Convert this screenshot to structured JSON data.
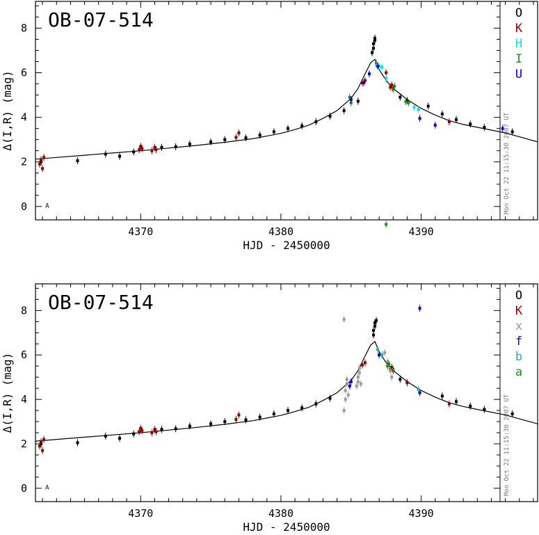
{
  "chart_data": [
    {
      "type": "scatter",
      "title": "OB-07-514",
      "xlabel": "HJD - 2450000",
      "ylabel": "Δ(I,R) (mag)",
      "xlim": [
        4362.5,
        4398.3
      ],
      "ylim": [
        -0.6,
        9.2
      ],
      "x_ticks": [
        "4370",
        "4380",
        "4390"
      ],
      "y_ticks": [
        "0",
        "2",
        "4",
        "6",
        "8"
      ],
      "grid": false,
      "legend_position": "right-column",
      "timestamp": "Mon Oct 22 11:15:30 2007 UT",
      "corner_mark": "A",
      "model_curve": {
        "x": [
          4362.5,
          4364,
          4366,
          4368,
          4370,
          4372,
          4374,
          4376,
          4378,
          4380,
          4381,
          4382,
          4383,
          4384,
          4385,
          4385.5,
          4386,
          4386.4,
          4386.7,
          4387,
          4387.5,
          4388,
          4389,
          4390,
          4391,
          4392,
          4393,
          4394,
          4396,
          4398.3
        ],
        "y": [
          2.12,
          2.2,
          2.3,
          2.4,
          2.5,
          2.62,
          2.74,
          2.88,
          3.04,
          3.28,
          3.45,
          3.65,
          3.95,
          4.3,
          4.85,
          5.3,
          5.95,
          6.45,
          6.6,
          6.15,
          5.65,
          5.3,
          4.8,
          4.4,
          4.1,
          3.85,
          3.68,
          3.55,
          3.3,
          2.9
        ]
      },
      "series": [
        {
          "name": "O",
          "color": "#000000",
          "x": [
            4362.9,
            4365.5,
            4367.5,
            4368.5,
            4369.5,
            4371.5,
            4372.5,
            4373.5,
            4375.0,
            4376.0,
            4377.5,
            4378.5,
            4379.5,
            4380.5,
            4381.5,
            4382.5,
            4383.5,
            4384.5,
            4385.5,
            4386.5,
            4386.6,
            4386.6,
            4386.7,
            4386.7,
            4386.8,
            4388.5,
            4389.0,
            4390.5,
            4391.5,
            4392.5,
            4393.5,
            4394.5,
            4396.5
          ],
          "y": [
            2.0,
            2.05,
            2.35,
            2.25,
            2.45,
            2.65,
            2.68,
            2.8,
            2.9,
            3.0,
            3.08,
            3.2,
            3.35,
            3.5,
            3.62,
            3.8,
            4.05,
            4.3,
            4.72,
            6.9,
            7.1,
            7.3,
            7.45,
            7.55,
            6.4,
            4.9,
            4.75,
            4.5,
            4.15,
            3.9,
            3.7,
            3.55,
            3.35
          ]
        },
        {
          "name": "K",
          "color": "#8b0000",
          "x": [
            4362.8,
            4362.9,
            4363.0,
            4363.1,
            4369.9,
            4370.0,
            4370.1,
            4370.8,
            4371.0,
            4371.1,
            4376.8,
            4377.0,
            4385.8,
            4386.0,
            4387.5,
            4387.8,
            4387.9,
            4388.0,
            4392.0
          ],
          "y": [
            1.9,
            2.1,
            1.7,
            2.2,
            2.55,
            2.7,
            2.6,
            2.5,
            2.65,
            2.55,
            3.1,
            3.3,
            5.55,
            5.65,
            6.0,
            5.35,
            5.45,
            5.3,
            3.8
          ]
        },
        {
          "name": "H",
          "color": "#00e5ee",
          "x": [
            4386.8,
            4387.0,
            4387.2,
            4387.5,
            4389.5,
            4389.8
          ],
          "y": [
            6.35,
            6.3,
            6.25,
            5.75,
            4.45,
            4.35
          ]
        },
        {
          "name": "I",
          "color": "#228b22",
          "x": [
            4384.9,
            4385.0,
            4388.0,
            4388.1,
            4388.9,
            4389.1,
            4387.5
          ],
          "y": [
            4.9,
            4.65,
            5.25,
            5.4,
            4.7,
            4.65,
            -0.8
          ]
        },
        {
          "name": "U",
          "color": "#0000cd",
          "x": [
            4385.0,
            4385.9,
            4386.3,
            4386.9,
            4389.9,
            4391.0,
            4395.8
          ],
          "y": [
            4.8,
            5.55,
            5.95,
            6.3,
            3.95,
            3.65,
            3.5
          ]
        }
      ]
    },
    {
      "type": "scatter",
      "title": "OB-07-514",
      "xlabel": "HJD - 2450000",
      "ylabel": "Δ(I,R) (mag)",
      "xlim": [
        4362.5,
        4398.3
      ],
      "ylim": [
        -0.6,
        9.2
      ],
      "x_ticks": [
        "4370",
        "4380",
        "4390"
      ],
      "y_ticks": [
        "0",
        "2",
        "4",
        "6",
        "8"
      ],
      "grid": false,
      "legend_position": "right-column",
      "timestamp": "Mon Oct 22 11:15:30 2007 UT",
      "corner_mark": "A",
      "model_curve": {
        "x": [
          4362.5,
          4364,
          4366,
          4368,
          4370,
          4372,
          4374,
          4376,
          4378,
          4380,
          4381,
          4382,
          4383,
          4384,
          4385,
          4385.5,
          4386,
          4386.4,
          4386.7,
          4387,
          4387.5,
          4388,
          4389,
          4390,
          4391,
          4392,
          4393,
          4394,
          4396,
          4398.3
        ],
        "y": [
          2.12,
          2.2,
          2.3,
          2.4,
          2.5,
          2.62,
          2.74,
          2.88,
          3.04,
          3.28,
          3.45,
          3.65,
          3.95,
          4.3,
          4.85,
          5.3,
          5.95,
          6.45,
          6.6,
          6.15,
          5.65,
          5.3,
          4.8,
          4.4,
          4.1,
          3.85,
          3.68,
          3.55,
          3.3,
          2.9
        ]
      },
      "series": [
        {
          "name": "O",
          "color": "#000000",
          "x": [
            4362.9,
            4365.5,
            4367.5,
            4368.5,
            4369.5,
            4371.5,
            4372.5,
            4373.5,
            4375.0,
            4376.0,
            4377.5,
            4378.5,
            4379.5,
            4380.5,
            4381.5,
            4382.5,
            4383.5,
            4386.6,
            4386.6,
            4386.7,
            4386.7,
            4386.8,
            4388.5,
            4389.0,
            4391.5,
            4392.5,
            4393.5,
            4394.5,
            4396.5
          ],
          "y": [
            2.0,
            2.05,
            2.35,
            2.25,
            2.45,
            2.65,
            2.68,
            2.8,
            2.9,
            3.0,
            3.08,
            3.2,
            3.35,
            3.5,
            3.62,
            3.8,
            4.05,
            6.9,
            7.1,
            7.3,
            7.45,
            7.55,
            4.9,
            4.75,
            4.15,
            3.9,
            3.7,
            3.55,
            3.35
          ]
        },
        {
          "name": "K",
          "color": "#8b0000",
          "x": [
            4362.8,
            4362.9,
            4363.0,
            4363.1,
            4369.9,
            4370.0,
            4370.1,
            4370.8,
            4371.0,
            4371.1,
            4376.8,
            4377.0,
            4385.8,
            4386.0,
            4387.8,
            4387.9,
            4388.0,
            4389.0,
            4392.0
          ],
          "y": [
            1.9,
            2.1,
            1.7,
            2.2,
            2.55,
            2.7,
            2.6,
            2.5,
            2.65,
            2.55,
            3.1,
            3.3,
            5.55,
            5.65,
            5.35,
            5.45,
            5.3,
            4.75,
            3.8
          ]
        },
        {
          "name": "x",
          "color": "#999999",
          "x": [
            4384.5,
            4384.5,
            4384.6,
            4384.6,
            4384.7,
            4384.7,
            4384.8,
            4385.4,
            4385.5,
            4385.5,
            4385.6,
            4385.6,
            4385.7,
            4387.4,
            4387.6,
            4387.8,
            4387.9
          ],
          "y": [
            7.6,
            3.5,
            4.0,
            4.4,
            4.7,
            4.9,
            4.2,
            4.6,
            4.8,
            5.0,
            5.2,
            5.4,
            4.7,
            6.1,
            5.7,
            5.3,
            5.0
          ]
        },
        {
          "name": "f",
          "color": "#0000cd",
          "x": [
            4384.9,
            4385.0,
            4387.0,
            4389.9,
            4389.9
          ],
          "y": [
            4.6,
            4.8,
            6.0,
            8.1,
            4.3
          ]
        },
        {
          "name": "b",
          "color": "#20b2aa",
          "x": [
            4386.9,
            4387.2,
            4389.8
          ],
          "y": [
            6.25,
            6.0,
            4.45
          ]
        },
        {
          "name": "a",
          "color": "#228b22",
          "x": [
            4387.6,
            4387.7,
            4388.0
          ],
          "y": [
            5.5,
            5.6,
            5.35
          ]
        }
      ]
    }
  ]
}
